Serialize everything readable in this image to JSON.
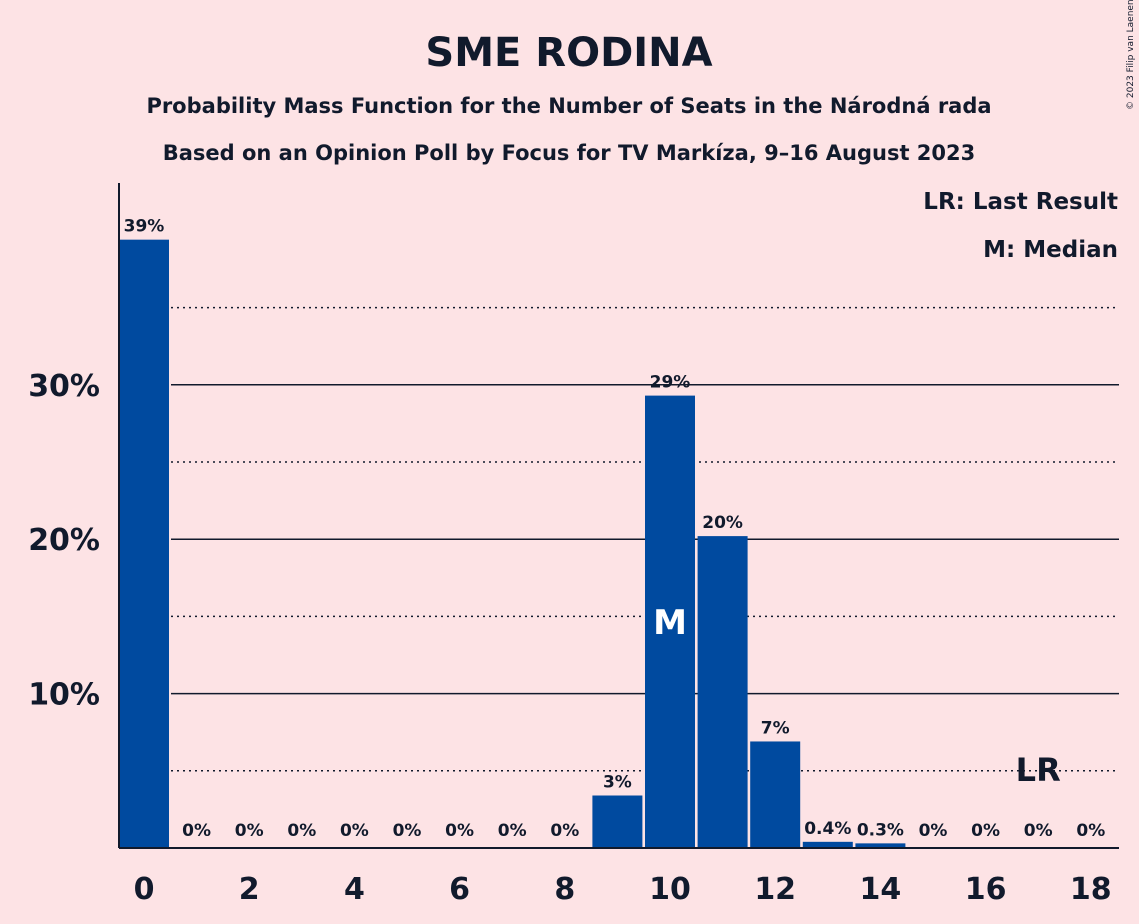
{
  "copyright": "© 2023 Filip van Laenen",
  "chart_data": {
    "type": "bar",
    "title": "SME RODINA",
    "subtitle": "Probability Mass Function for the Number of Seats in the Národná rada",
    "subtitle2": "Based on an Opinion Poll by Focus for TV Markíza, 9–16 August 2023",
    "xlabel": "",
    "ylabel": "",
    "x": [
      0,
      1,
      2,
      3,
      4,
      5,
      6,
      7,
      8,
      9,
      10,
      11,
      12,
      13,
      14,
      15,
      16,
      17,
      18
    ],
    "values": [
      39.4,
      0,
      0,
      0,
      0,
      0,
      0,
      0,
      0,
      3.4,
      29.3,
      20.2,
      6.9,
      0.4,
      0.3,
      0,
      0,
      0,
      0
    ],
    "data_labels": [
      "39%",
      "0%",
      "0%",
      "0%",
      "0%",
      "0%",
      "0%",
      "0%",
      "0%",
      "3%",
      "29%",
      "20%",
      "7%",
      "0.4%",
      "0.3%",
      "0%",
      "0%",
      "0%",
      "0%"
    ],
    "x_tick_values": [
      0,
      2,
      4,
      6,
      8,
      10,
      12,
      14,
      16,
      18
    ],
    "x_tick_labels": [
      "0",
      "2",
      "4",
      "6",
      "8",
      "10",
      "12",
      "14",
      "16",
      "18"
    ],
    "y_tick_values": [
      10,
      20,
      30
    ],
    "y_tick_labels": [
      "10%",
      "20%",
      "30%"
    ],
    "ylim": [
      0,
      43
    ],
    "major_gridlines": [
      10,
      20,
      30
    ],
    "minor_gridlines": [
      5,
      15,
      25,
      35
    ],
    "median_seats": 10,
    "median_marker": "M",
    "last_result_seats": 17,
    "last_result_marker": "LR",
    "legend": [
      "LR: Last Result",
      "M: Median"
    ],
    "legend_position": "top-right",
    "colors": {
      "bar": "#004a9f",
      "background": "#fde3e5",
      "text": "#111a2c"
    }
  }
}
